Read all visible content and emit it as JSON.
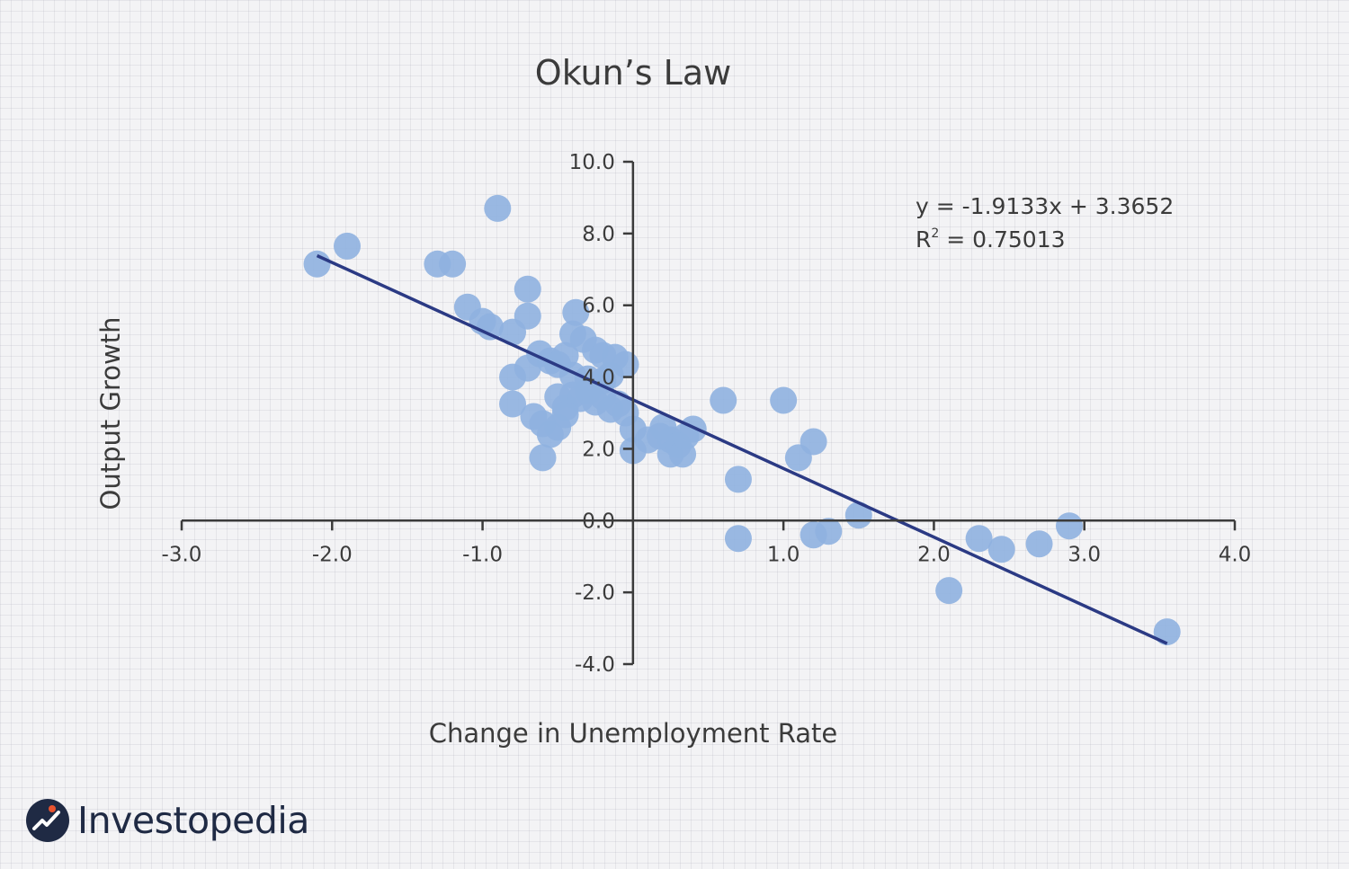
{
  "colors": {
    "point": "#8fb1e0",
    "trendline": "#2b3a84",
    "axis": "#3b3b3b",
    "text": "#3b3b3b",
    "brand": "#1f2a44",
    "brand_accent": "#e8532f"
  },
  "brand": {
    "name": "Investopedia",
    "logo_icon": "investopedia-logo-icon"
  },
  "chart_data": {
    "type": "scatter",
    "title": "Okun’s Law",
    "xlabel": "Change in Unemployment Rate",
    "ylabel": "Output Growth",
    "xlim": [
      -3.0,
      4.0
    ],
    "ylim": [
      -4.0,
      10.0
    ],
    "x_ticks": [
      "-3.0",
      "-2.0",
      "-1.0",
      "1.0",
      "2.0",
      "3.0",
      "4.0"
    ],
    "y_ticks": [
      "10.0",
      "8.0",
      "6.0",
      "4.0",
      "2.0",
      "0.0",
      "-2.0",
      "-4.0"
    ],
    "grid": false,
    "trendline": {
      "slope": -1.9133,
      "intercept": 3.3652,
      "x_range": [
        -2.1,
        3.55
      ],
      "equation": "y = -1.9133x + 3.3652",
      "r2_label": "R",
      "r2_sup": "2",
      "r2_value": " = 0.75013"
    },
    "points": [
      {
        "x": -2.1,
        "y": 7.15
      },
      {
        "x": -1.9,
        "y": 7.65
      },
      {
        "x": -1.3,
        "y": 7.15
      },
      {
        "x": -1.2,
        "y": 7.15
      },
      {
        "x": -1.1,
        "y": 5.95
      },
      {
        "x": -1.0,
        "y": 5.55
      },
      {
        "x": -0.95,
        "y": 5.4
      },
      {
        "x": -0.9,
        "y": 8.7
      },
      {
        "x": -0.8,
        "y": 5.25
      },
      {
        "x": -0.7,
        "y": 6.45
      },
      {
        "x": -0.7,
        "y": 5.7
      },
      {
        "x": -0.8,
        "y": 4.0
      },
      {
        "x": -0.8,
        "y": 3.25
      },
      {
        "x": -0.7,
        "y": 4.25
      },
      {
        "x": -0.62,
        "y": 4.65
      },
      {
        "x": -0.55,
        "y": 4.45
      },
      {
        "x": -0.5,
        "y": 4.35
      },
      {
        "x": -0.45,
        "y": 4.6
      },
      {
        "x": -0.4,
        "y": 5.2
      },
      {
        "x": -0.38,
        "y": 5.8
      },
      {
        "x": -0.33,
        "y": 5.05
      },
      {
        "x": -0.25,
        "y": 4.75
      },
      {
        "x": -0.2,
        "y": 4.6
      },
      {
        "x": -0.12,
        "y": 4.55
      },
      {
        "x": -0.05,
        "y": 4.35
      },
      {
        "x": -0.4,
        "y": 4.05
      },
      {
        "x": -0.3,
        "y": 3.95
      },
      {
        "x": -0.2,
        "y": 3.9
      },
      {
        "x": -0.15,
        "y": 4.05
      },
      {
        "x": -0.5,
        "y": 3.45
      },
      {
        "x": -0.45,
        "y": 3.15
      },
      {
        "x": -0.4,
        "y": 3.5
      },
      {
        "x": -0.35,
        "y": 3.4
      },
      {
        "x": -0.3,
        "y": 3.6
      },
      {
        "x": -0.25,
        "y": 3.3
      },
      {
        "x": -0.2,
        "y": 3.45
      },
      {
        "x": -0.15,
        "y": 3.1
      },
      {
        "x": -0.1,
        "y": 3.25
      },
      {
        "x": -0.05,
        "y": 3.0
      },
      {
        "x": -0.66,
        "y": 2.9
      },
      {
        "x": -0.6,
        "y": 2.7
      },
      {
        "x": -0.55,
        "y": 2.4
      },
      {
        "x": -0.5,
        "y": 2.6
      },
      {
        "x": -0.45,
        "y": 2.95
      },
      {
        "x": -0.6,
        "y": 1.75
      },
      {
        "x": 0.0,
        "y": 2.55
      },
      {
        "x": 0.0,
        "y": 1.95
      },
      {
        "x": 0.1,
        "y": 2.25
      },
      {
        "x": 0.18,
        "y": 2.35
      },
      {
        "x": 0.2,
        "y": 2.6
      },
      {
        "x": 0.25,
        "y": 2.25
      },
      {
        "x": 0.25,
        "y": 1.85
      },
      {
        "x": 0.3,
        "y": 2.1
      },
      {
        "x": 0.33,
        "y": 1.85
      },
      {
        "x": 0.35,
        "y": 2.35
      },
      {
        "x": 0.4,
        "y": 2.55
      },
      {
        "x": 0.6,
        "y": 3.35
      },
      {
        "x": 1.0,
        "y": 3.35
      },
      {
        "x": 0.7,
        "y": 1.15
      },
      {
        "x": 0.7,
        "y": -0.5
      },
      {
        "x": 1.1,
        "y": 1.75
      },
      {
        "x": 1.2,
        "y": 2.2
      },
      {
        "x": 1.2,
        "y": -0.4
      },
      {
        "x": 1.3,
        "y": -0.3
      },
      {
        "x": 1.5,
        "y": 0.15
      },
      {
        "x": 2.1,
        "y": -1.95
      },
      {
        "x": 2.3,
        "y": -0.5
      },
      {
        "x": 2.45,
        "y": -0.8
      },
      {
        "x": 2.7,
        "y": -0.65
      },
      {
        "x": 2.9,
        "y": -0.15
      },
      {
        "x": 3.55,
        "y": -3.1
      }
    ]
  }
}
